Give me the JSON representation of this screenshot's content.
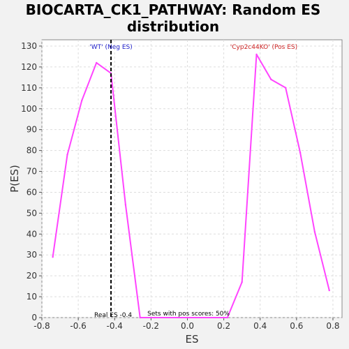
{
  "chart_data": {
    "type": "line",
    "title": "BIOCARTA_CK1_PATHWAY: Random ES distribution",
    "title_lines": [
      "BIOCARTA_CK1_PATHWAY: Random ES",
      "distribution"
    ],
    "xlabel": "ES",
    "ylabel": "P(ES)",
    "xlim": [
      -0.8,
      0.85
    ],
    "ylim": [
      0,
      133
    ],
    "x_ticks": [
      -0.8,
      -0.6,
      -0.4,
      -0.2,
      0.0,
      0.2,
      0.4,
      0.6,
      0.8
    ],
    "x_tick_labels": [
      "-0.8",
      "-0.6",
      "-0.4",
      "-0.2",
      "0.0",
      "0.2",
      "0.4",
      "0.6",
      "0.8"
    ],
    "y_ticks": [
      0,
      10,
      20,
      30,
      40,
      50,
      60,
      70,
      80,
      90,
      100,
      110,
      120,
      130
    ],
    "y_tick_labels": [
      "0",
      "10",
      "20",
      "30",
      "40",
      "50",
      "60",
      "70",
      "80",
      "90",
      "100",
      "110",
      "120",
      "130"
    ],
    "grid": true,
    "series": [
      {
        "color": "#ff44ff",
        "x": [
          -0.74,
          -0.66,
          -0.58,
          -0.5,
          -0.42,
          -0.34,
          -0.26,
          -0.18,
          0.22,
          0.3,
          0.38,
          0.46,
          0.54,
          0.62,
          0.7,
          0.78
        ],
        "y": [
          29,
          78,
          104,
          122,
          117,
          54,
          0,
          0,
          0,
          17,
          126,
          114,
          110,
          79,
          41,
          13
        ]
      }
    ],
    "real_es": -0.42,
    "annotations": {
      "neg_label": "'WT' (Neg ES)",
      "neg_color": "#2222cc",
      "pos_label": "'Cyp2c44KO' (Pos ES)",
      "pos_color": "#cc2222",
      "real_es_label": "Real ES -0.4",
      "pos_scores_label": "Sets with pos scores: 50%"
    }
  }
}
